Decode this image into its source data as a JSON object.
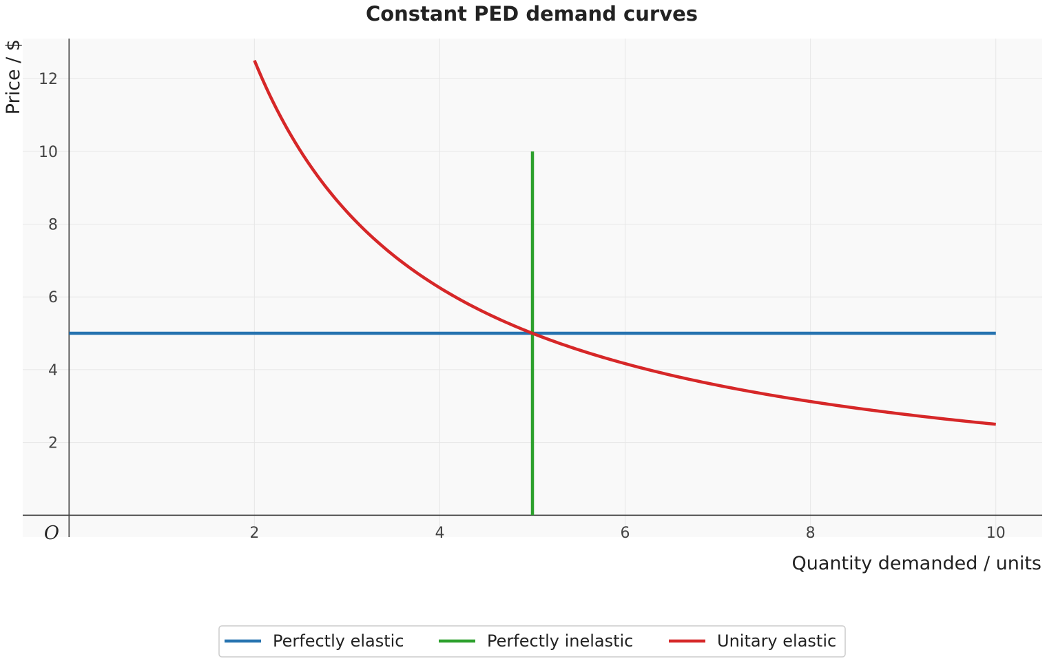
{
  "chart_data": {
    "type": "line",
    "title": "Constant PED demand curves",
    "xlabel": "Quantity demanded / units",
    "ylabel": "Price / $",
    "origin_label": "O",
    "xlim": [
      -0.5,
      10.5
    ],
    "ylim": [
      -0.6,
      13.1
    ],
    "x_ticks": [
      2,
      4,
      6,
      8,
      10
    ],
    "y_ticks": [
      2,
      4,
      6,
      8,
      10,
      12
    ],
    "grid": true,
    "legend_position": "bottom-center",
    "colors": {
      "background": "#f9f9f9",
      "grid": "#e6e6e6",
      "axis": "#444444"
    },
    "series": [
      {
        "name": "Perfectly elastic",
        "color": "#2673b0",
        "points": [
          [
            0,
            5
          ],
          [
            10,
            5
          ]
        ]
      },
      {
        "name": "Perfectly inelastic",
        "color": "#2ca02c",
        "points": [
          [
            5,
            0
          ],
          [
            5,
            10
          ]
        ]
      },
      {
        "name": "Unitary elastic",
        "color": "#d62728",
        "function": "y = 25 / x",
        "x_range": [
          2,
          10
        ],
        "points": [
          [
            2,
            12.5
          ],
          [
            2.5,
            10
          ],
          [
            3,
            8.33
          ],
          [
            4,
            6.25
          ],
          [
            5,
            5
          ],
          [
            6,
            4.17
          ],
          [
            7,
            3.57
          ],
          [
            8,
            3.13
          ],
          [
            9,
            2.78
          ],
          [
            10,
            2.5
          ]
        ]
      }
    ]
  }
}
